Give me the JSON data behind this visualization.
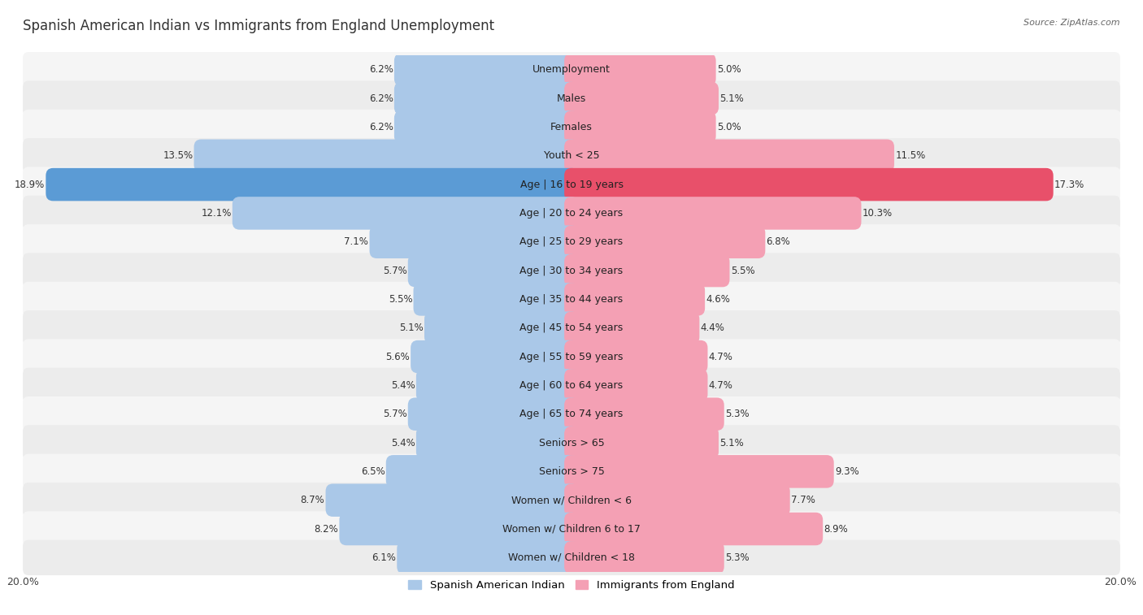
{
  "title": "Spanish American Indian vs Immigrants from England Unemployment",
  "source": "Source: ZipAtlas.com",
  "categories": [
    "Unemployment",
    "Males",
    "Females",
    "Youth < 25",
    "Age | 16 to 19 years",
    "Age | 20 to 24 years",
    "Age | 25 to 29 years",
    "Age | 30 to 34 years",
    "Age | 35 to 44 years",
    "Age | 45 to 54 years",
    "Age | 55 to 59 years",
    "Age | 60 to 64 years",
    "Age | 65 to 74 years",
    "Seniors > 65",
    "Seniors > 75",
    "Women w/ Children < 6",
    "Women w/ Children 6 to 17",
    "Women w/ Children < 18"
  ],
  "left_values": [
    6.2,
    6.2,
    6.2,
    13.5,
    18.9,
    12.1,
    7.1,
    5.7,
    5.5,
    5.1,
    5.6,
    5.4,
    5.7,
    5.4,
    6.5,
    8.7,
    8.2,
    6.1
  ],
  "right_values": [
    5.0,
    5.1,
    5.0,
    11.5,
    17.3,
    10.3,
    6.8,
    5.5,
    4.6,
    4.4,
    4.7,
    4.7,
    5.3,
    5.1,
    9.3,
    7.7,
    8.9,
    5.3
  ],
  "left_color": "#aac8e8",
  "right_color": "#f4a0b4",
  "left_label": "Spanish American Indian",
  "right_label": "Immigrants from England",
  "axis_max": 20.0,
  "title_fontsize": 12,
  "label_fontsize": 9,
  "value_fontsize": 8.5,
  "bar_height": 0.62,
  "row_colors": [
    "#f5f5f5",
    "#ececec"
  ],
  "highlight_left_color": "#5b9bd5",
  "highlight_right_color": "#e8506a",
  "highlight_rows": [
    4
  ]
}
